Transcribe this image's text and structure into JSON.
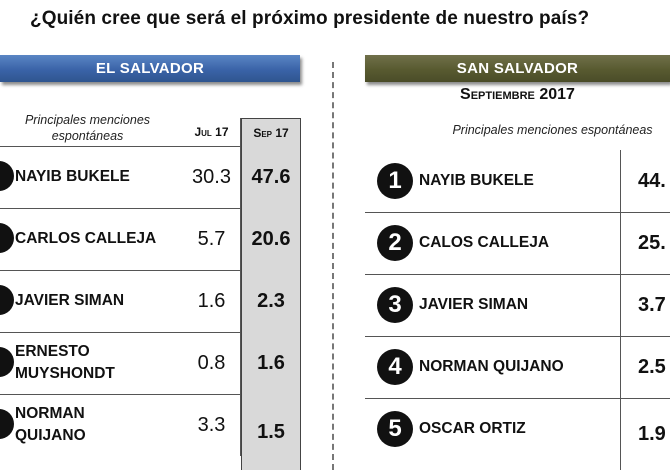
{
  "title": "¿Quién cree que será el próximo presidente de nuestro país?",
  "left": {
    "header": "EL SALVADOR",
    "label": "Principales menciones espontáneas",
    "col_jul": "Jul 17",
    "col_sep": "Sep 17",
    "rows": [
      {
        "name": "NAYIB BUKELE",
        "jul": "30.3",
        "sep": "47.6"
      },
      {
        "name": "CARLOS CALLEJA",
        "jul": "5.7",
        "sep": "20.6"
      },
      {
        "name": "JAVIER SIMAN",
        "jul": "1.6",
        "sep": "2.3"
      },
      {
        "name": "ERNESTO MUYSHONDT",
        "jul": "0.8",
        "sep": "1.6"
      },
      {
        "name": "NORMAN QUIJANO",
        "jul": "3.3",
        "sep": "1.5"
      }
    ]
  },
  "right": {
    "header": "SAN SALVADOR",
    "subtitle": "Septiembre 2017",
    "label": "Principales menciones espontáneas",
    "rows": [
      {
        "rank": "1",
        "name": "NAYIB BUKELE",
        "value": "44."
      },
      {
        "rank": "2",
        "name": "CALOS CALLEJA",
        "value": "25."
      },
      {
        "rank": "3",
        "name": "JAVIER SIMAN",
        "value": "3.7"
      },
      {
        "rank": "4",
        "name": "NORMAN QUIJANO",
        "value": "2.5"
      },
      {
        "rank": "5",
        "name": "OSCAR ORTIZ",
        "value": "1.9"
      }
    ]
  }
}
